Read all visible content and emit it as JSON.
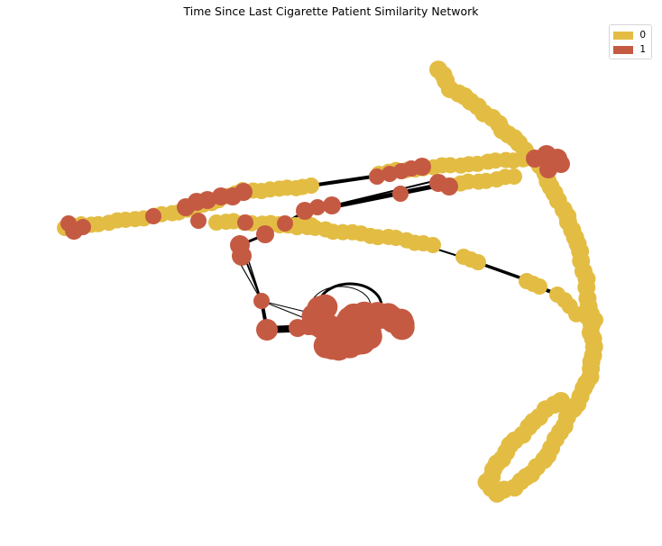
{
  "title": "Time Since Last Cigarette Patient Similarity Network",
  "legend": [
    {
      "label": "0",
      "color": "#e3bd43"
    },
    {
      "label": "1",
      "color": "#c55a43"
    }
  ],
  "colors": {
    "class_0": "#e3bd43",
    "class_1": "#c55a43",
    "edge": "#000000"
  }
}
